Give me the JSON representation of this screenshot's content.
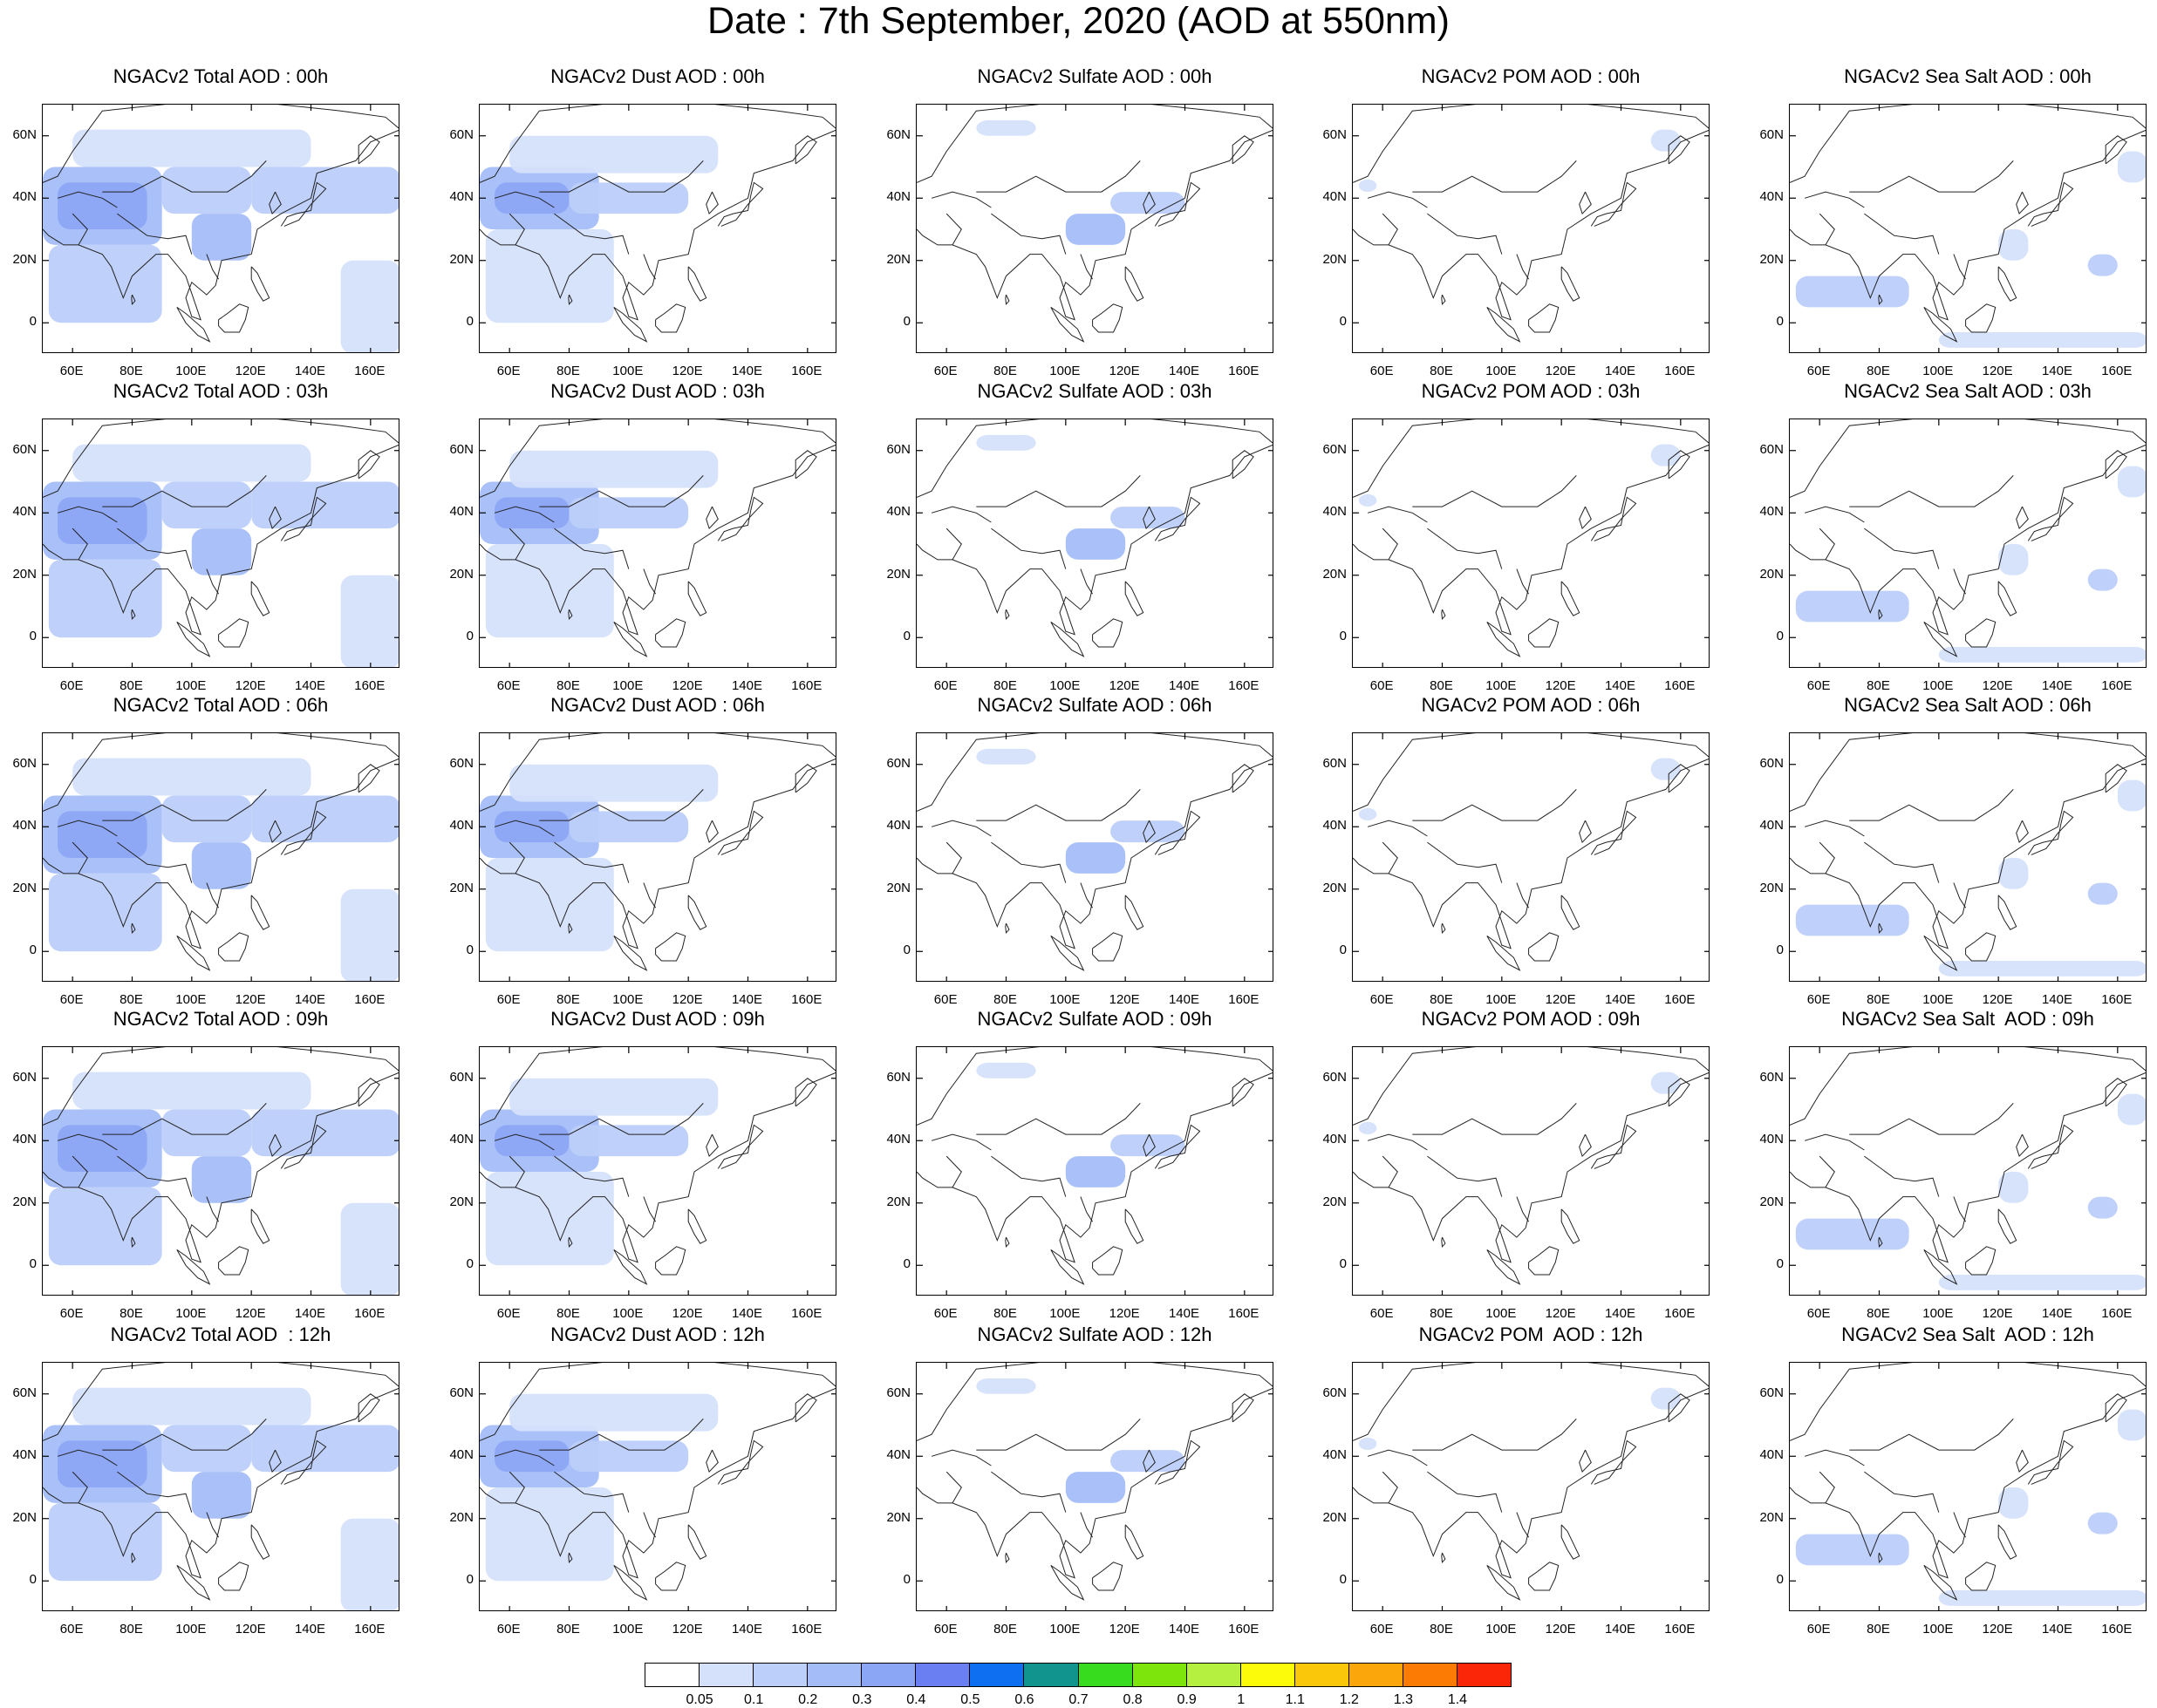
{
  "title": "Date : 7th September, 2020 (AOD at 550nm)",
  "lat_labels": [
    "60N",
    "40N",
    "20N",
    "0"
  ],
  "lon_labels": [
    "60E",
    "80E",
    "100E",
    "120E",
    "140E",
    "160E"
  ],
  "species": [
    "Total",
    "Dust",
    "Sulfate",
    "POM",
    "SeaSalt"
  ],
  "hours": [
    "00h",
    "03h",
    "06h",
    "09h",
    "12h"
  ],
  "panel_titles": [
    [
      "NGACv2 Total AOD : 00h",
      "NGACv2 Dust AOD : 00h",
      "NGACv2 Sulfate AOD : 00h",
      "NGACv2 POM AOD : 00h",
      "NGACv2 Sea Salt AOD : 00h"
    ],
    [
      "NGACv2 Total AOD : 03h",
      "NGACv2 Dust AOD : 03h",
      "NGACv2 Sulfate AOD : 03h",
      "NGACv2 POM AOD : 03h",
      "NGACv2 Sea Salt AOD : 03h"
    ],
    [
      "NGACv2 Total AOD : 06h",
      "NGACv2 Dust AOD : 06h",
      "NGACv2 Sulfate AOD : 06h",
      "NGACv2 POM AOD : 06h",
      "NGACv2 Sea Salt AOD : 06h"
    ],
    [
      "NGACv2 Total AOD : 09h",
      "NGACv2 Dust AOD : 09h",
      "NGACv2 Sulfate AOD : 09h",
      "NGACv2 POM AOD : 09h",
      "NGACv2 Sea Salt  AOD : 09h"
    ],
    [
      "NGACv2 Total AOD  : 12h",
      "NGACv2 Dust AOD : 12h",
      "NGACv2 Sulfate AOD : 12h",
      "NGACv2 POM  AOD : 12h",
      "NGACv2 Sea Salt  AOD : 12h"
    ]
  ],
  "colorbar": {
    "labels": [
      "0.05",
      "0.1",
      "0.2",
      "0.3",
      "0.4",
      "0.5",
      "0.6",
      "0.7",
      "0.8",
      "0.9",
      "1",
      "1.1",
      "1.2",
      "1.3",
      "1.4"
    ],
    "colors": [
      "#ffffff",
      "#d5e0fb",
      "#bccffa",
      "#a4bdf8",
      "#8ca6f6",
      "#6a7ff2",
      "#0e6ff0",
      "#12948e",
      "#37dc1f",
      "#7ee50c",
      "#b5ef3f",
      "#fbfb0a",
      "#fbc70a",
      "#fba60a",
      "#fb7b05",
      "#fb2607"
    ]
  },
  "map_extent": {
    "lon": [
      50,
      170
    ],
    "lat": [
      -10,
      70
    ]
  },
  "aod_regions": {
    "Total": [
      {
        "lon": [
          50,
          90
        ],
        "lat": [
          25,
          50
        ],
        "level": 3
      },
      {
        "lon": [
          55,
          85
        ],
        "lat": [
          30,
          45
        ],
        "level": 4
      },
      {
        "lon": [
          90,
          120
        ],
        "lat": [
          35,
          50
        ],
        "level": 2
      },
      {
        "lon": [
          100,
          120
        ],
        "lat": [
          20,
          35
        ],
        "level": 3
      },
      {
        "lon": [
          120,
          170
        ],
        "lat": [
          35,
          50
        ],
        "level": 2
      },
      {
        "lon": [
          60,
          140
        ],
        "lat": [
          50,
          62
        ],
        "level": 1
      },
      {
        "lon": [
          52,
          90
        ],
        "lat": [
          0,
          25
        ],
        "level": 2
      },
      {
        "lon": [
          150,
          170
        ],
        "lat": [
          -10,
          20
        ],
        "level": 1
      }
    ],
    "Dust": [
      {
        "lon": [
          50,
          90
        ],
        "lat": [
          30,
          50
        ],
        "level": 3
      },
      {
        "lon": [
          55,
          80
        ],
        "lat": [
          35,
          45
        ],
        "level": 4
      },
      {
        "lon": [
          80,
          120
        ],
        "lat": [
          35,
          45
        ],
        "level": 2
      },
      {
        "lon": [
          60,
          130
        ],
        "lat": [
          48,
          60
        ],
        "level": 1
      },
      {
        "lon": [
          52,
          95
        ],
        "lat": [
          0,
          30
        ],
        "level": 1
      }
    ],
    "Sulfate": [
      {
        "lon": [
          100,
          120
        ],
        "lat": [
          25,
          35
        ],
        "level": 3
      },
      {
        "lon": [
          115,
          140
        ],
        "lat": [
          35,
          42
        ],
        "level": 2
      },
      {
        "lon": [
          70,
          90
        ],
        "lat": [
          60,
          65
        ],
        "level": 1
      }
    ],
    "POM": [
      {
        "lon": [
          150,
          160
        ],
        "lat": [
          55,
          62
        ],
        "level": 1
      },
      {
        "lon": [
          52,
          58
        ],
        "lat": [
          42,
          46
        ],
        "level": 1
      }
    ],
    "SeaSalt": [
      {
        "lon": [
          52,
          90
        ],
        "lat": [
          5,
          15
        ],
        "level": 2
      },
      {
        "lon": [
          150,
          160
        ],
        "lat": [
          15,
          22
        ],
        "level": 2
      },
      {
        "lon": [
          120,
          130
        ],
        "lat": [
          20,
          30
        ],
        "level": 1
      },
      {
        "lon": [
          160,
          170
        ],
        "lat": [
          45,
          55
        ],
        "level": 1
      },
      {
        "lon": [
          100,
          170
        ],
        "lat": [
          -8,
          -3
        ],
        "level": 1
      }
    ]
  }
}
